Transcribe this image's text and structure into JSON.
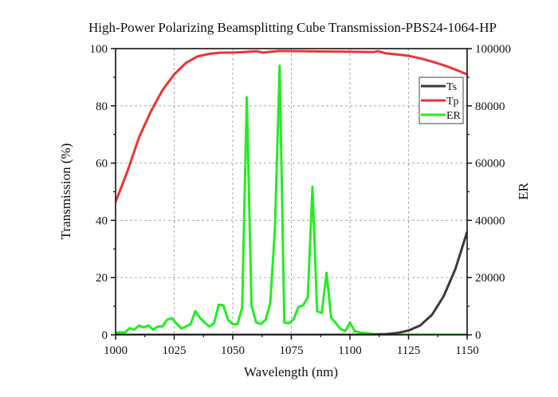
{
  "chart_data": {
    "type": "line",
    "title": "High-Power Polarizing Beamsplitting Cube Transmission-PBS24-1064-HP",
    "xlabel": "Wavelength (nm)",
    "ylabel": "Transmission (%)",
    "y2label": "ER",
    "xlim": [
      1000,
      1150
    ],
    "ylim": [
      0,
      100
    ],
    "y2lim": [
      0,
      100000
    ],
    "x_ticks": [
      1000,
      1025,
      1050,
      1075,
      1100,
      1125,
      1150
    ],
    "y_ticks": [
      0,
      20,
      40,
      60,
      80,
      100
    ],
    "y2_ticks": [
      0,
      20000,
      40000,
      60000,
      80000,
      100000
    ],
    "grid": true,
    "legend_position": "top-right",
    "series": [
      {
        "name": "Ts",
        "axis": "left",
        "color": "#3a3a3a",
        "x": [
          1000,
          1020,
          1040,
          1060,
          1080,
          1100,
          1110,
          1115,
          1120,
          1125,
          1130,
          1135,
          1140,
          1145,
          1150
        ],
        "values": [
          0,
          0,
          0,
          0,
          0,
          0,
          0.05,
          0.2,
          0.6,
          1.5,
          3.3,
          7,
          13.5,
          23,
          36
        ]
      },
      {
        "name": "Tp",
        "axis": "left",
        "color": "#ee3333",
        "x": [
          1000,
          1005,
          1010,
          1015,
          1020,
          1025,
          1030,
          1035,
          1040,
          1045,
          1050,
          1055,
          1060,
          1063,
          1065,
          1070,
          1080,
          1090,
          1100,
          1110,
          1112,
          1115,
          1120,
          1125,
          1130,
          1135,
          1140,
          1145,
          1150
        ],
        "values": [
          46.5,
          57,
          69,
          78,
          85.5,
          91,
          95,
          97.3,
          98.2,
          98.6,
          98.6,
          98.8,
          99.1,
          98.6,
          98.8,
          99.2,
          99.1,
          99,
          98.9,
          98.8,
          99.1,
          98.4,
          98,
          97.5,
          96.6,
          95.5,
          94.2,
          92.7,
          91
        ]
      },
      {
        "name": "ER",
        "axis": "right",
        "color": "#22ee22",
        "x": [
          1000,
          1002,
          1004,
          1006,
          1008,
          1010,
          1012,
          1014,
          1016,
          1018,
          1020,
          1022,
          1024,
          1026,
          1028,
          1030,
          1032,
          1034,
          1036,
          1038,
          1040,
          1042,
          1044,
          1046,
          1048,
          1050,
          1052,
          1054,
          1056,
          1058,
          1060,
          1062,
          1064,
          1066,
          1068,
          1070,
          1072,
          1074,
          1076,
          1078,
          1080,
          1082,
          1084,
          1086,
          1088,
          1090,
          1092,
          1094,
          1096,
          1098,
          1100,
          1102,
          1105,
          1110,
          1115,
          1120,
          1130,
          1140,
          1150
        ],
        "values": [
          700,
          900,
          800,
          2300,
          1800,
          3300,
          2600,
          3300,
          1800,
          2900,
          2900,
          5300,
          5800,
          4000,
          2200,
          2900,
          3700,
          8300,
          6000,
          4300,
          2900,
          4000,
          10500,
          10300,
          5200,
          3700,
          3800,
          9500,
          83000,
          10300,
          4300,
          3800,
          5200,
          11000,
          37000,
          94000,
          4300,
          4000,
          5400,
          9700,
          10300,
          13000,
          51700,
          8300,
          7600,
          21700,
          6000,
          4000,
          2000,
          1300,
          4300,
          1300,
          700,
          300,
          200,
          100,
          100,
          100,
          100
        ]
      }
    ]
  }
}
